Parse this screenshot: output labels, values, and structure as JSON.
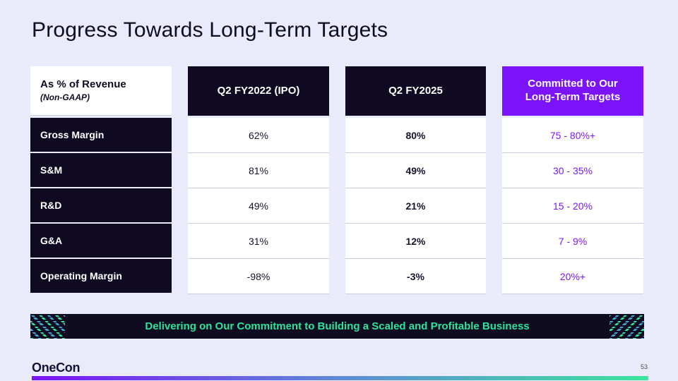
{
  "slide": {
    "title": "Progress Towards Long-Term Targets",
    "logo": "OneCon",
    "page_number": "53"
  },
  "table": {
    "header": {
      "metric_title": "As % of Revenue",
      "metric_subtitle": "(Non-GAAP)",
      "col_ipo": "Q2 FY2022 (IPO)",
      "col_fy2025": "Q2 FY2025",
      "col_target": "Committed to Our Long-Term Targets"
    },
    "rows": [
      {
        "label": "Gross Margin",
        "ipo": "62%",
        "fy2025": "80%",
        "target": "75 - 80%+"
      },
      {
        "label": "S&M",
        "ipo": "81%",
        "fy2025": "49%",
        "target": "30 - 35%"
      },
      {
        "label": "R&D",
        "ipo": "49%",
        "fy2025": "21%",
        "target": "15 - 20%"
      },
      {
        "label": "G&A",
        "ipo": "31%",
        "fy2025": "12%",
        "target": "7 - 9%"
      },
      {
        "label": "Operating Margin",
        "ipo": "-98%",
        "fy2025": "-3%",
        "target": "20%+"
      }
    ]
  },
  "banner": {
    "text": "Delivering on Our Commitment to Building a Scaled and Profitable Business"
  },
  "colors": {
    "background": "#e9ebfa",
    "dark_navy": "#0f0a21",
    "accent_purple": "#7b13fb",
    "target_text_purple": "#7a1bf0",
    "banner_green": "#2ce49b",
    "gradient_bar_start": "#7b12f5",
    "gradient_bar_mid": "#5f8ad6",
    "gradient_bar_end": "#3ce49c"
  }
}
